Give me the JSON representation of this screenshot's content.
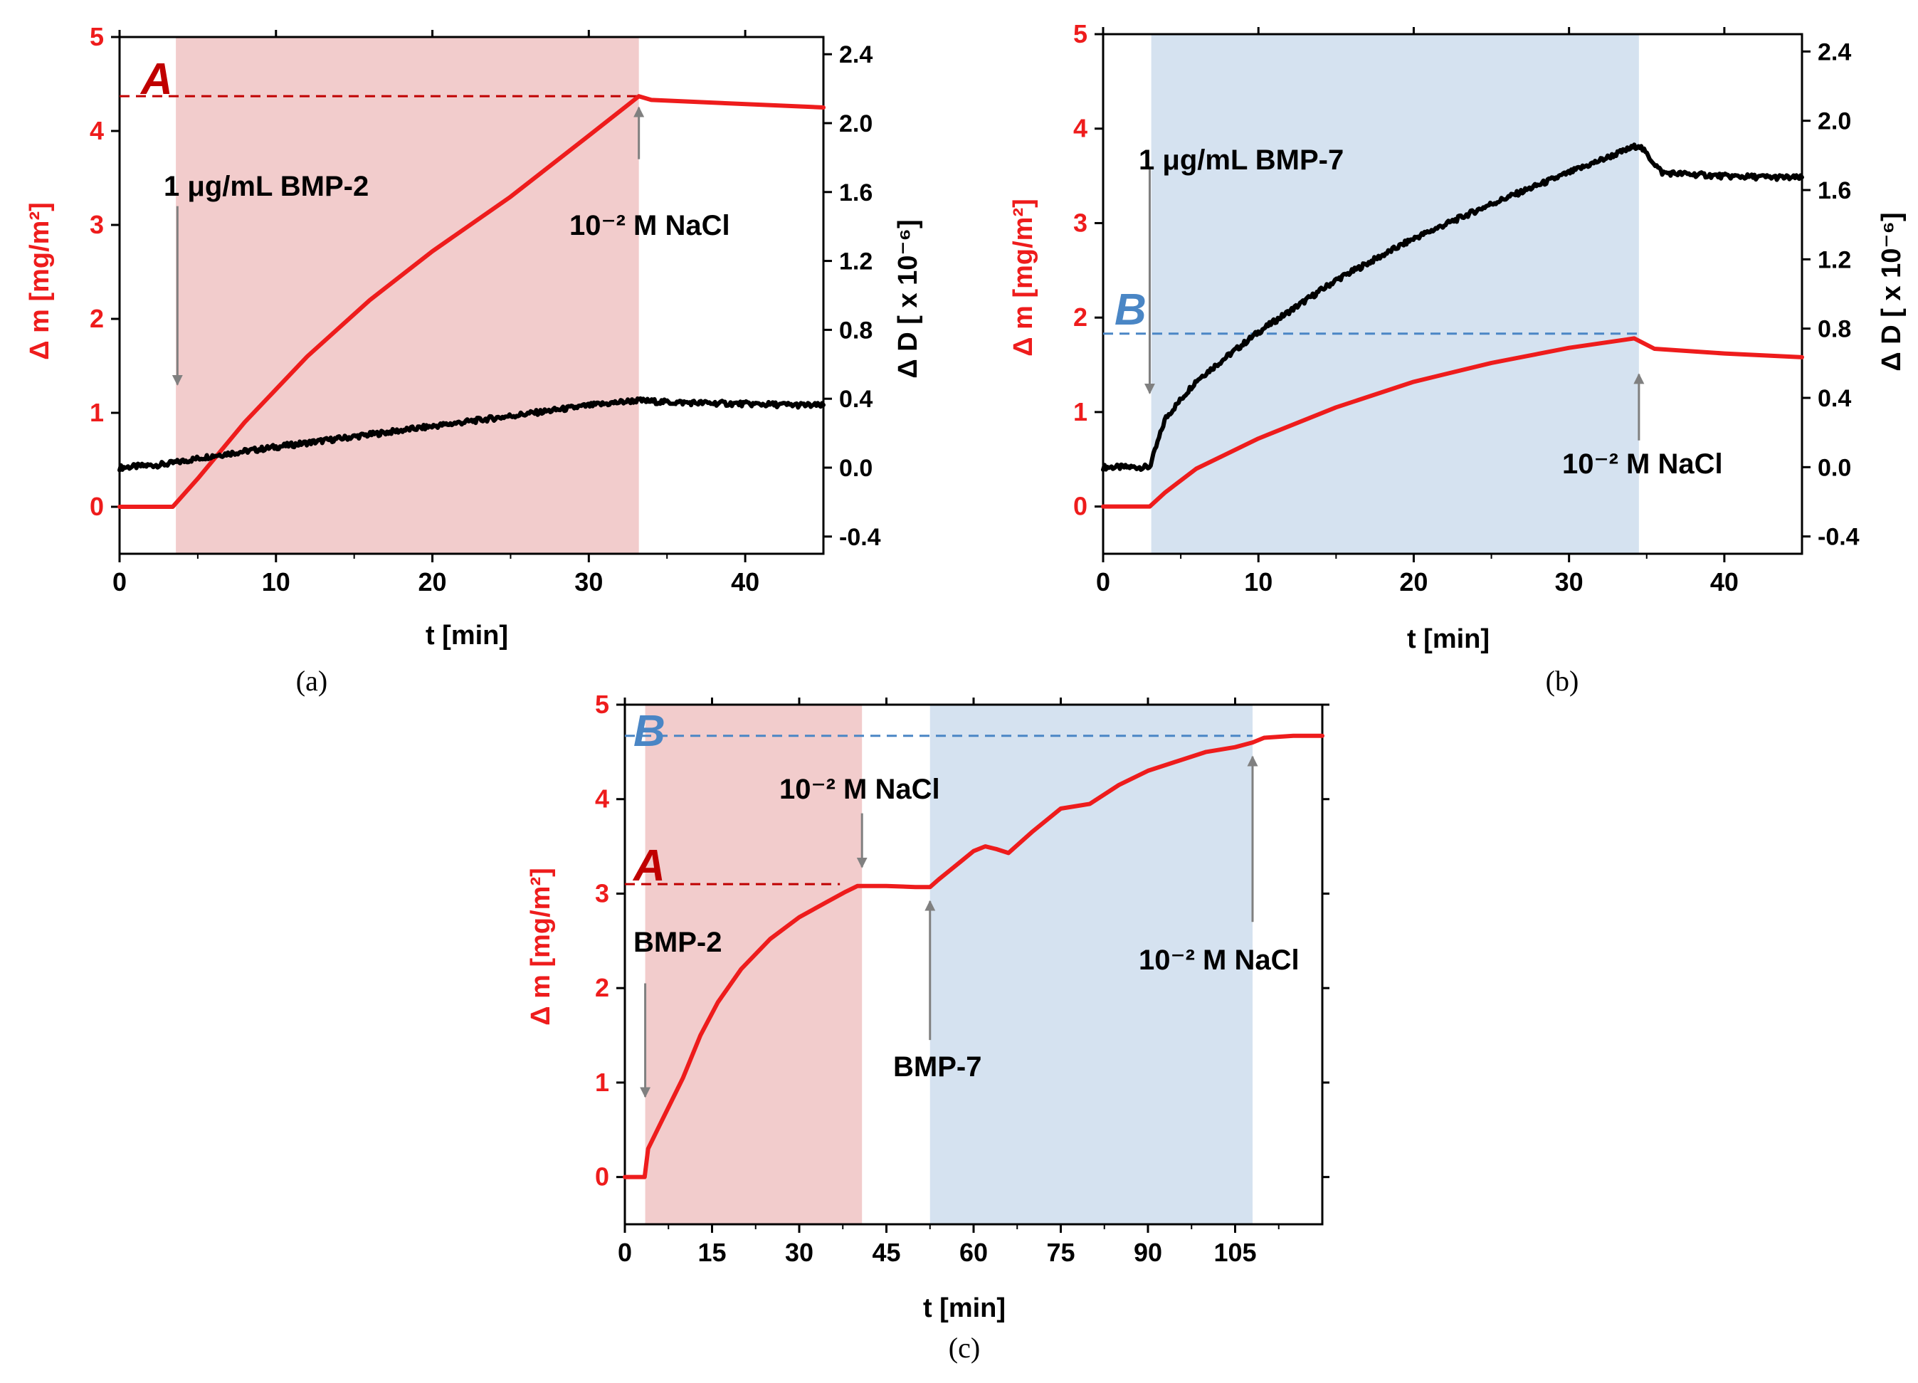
{
  "colors": {
    "mass": "#ee1c1c",
    "dissipation": "#000000",
    "bmp2_shade": "#f2cccc",
    "bmp7_shade": "#d5e2f0",
    "marker_a": "#c00000",
    "marker_b": "#4a86c5",
    "arrow": "#808080"
  },
  "chart_data": [
    {
      "id": "a",
      "panel_label": "(a)",
      "type": "line",
      "xlabel": "t [min]",
      "ylabel_left": "Δ m [mg/m²]",
      "ylabel_right": "Δ D [ x 10⁻⁶]",
      "xlim": [
        0,
        45
      ],
      "ylim_left": [
        -0.5,
        5
      ],
      "ylim_right": [
        -0.5,
        2.5
      ],
      "xticks": [
        0,
        10,
        20,
        30,
        40
      ],
      "yticks_left": [
        0,
        1,
        2,
        3,
        4,
        5
      ],
      "yticks_right": [
        -0.4,
        0.0,
        0.4,
        0.8,
        1.2,
        1.6,
        2.0,
        2.4
      ],
      "shaded_regions": [
        {
          "x0": 3.6,
          "x1": 33.2,
          "protein": "BMP-2"
        }
      ],
      "reference_line": {
        "y": 4.37,
        "label": "A"
      },
      "series": [
        {
          "name": "Δ m",
          "axis": "left",
          "x": [
            0,
            3.4,
            5,
            8,
            12,
            16,
            20,
            25,
            30,
            33.2,
            34,
            45
          ],
          "y": [
            0,
            0,
            0.3,
            0.9,
            1.6,
            2.2,
            2.72,
            3.3,
            3.95,
            4.37,
            4.33,
            4.25
          ]
        },
        {
          "name": "Δ D",
          "axis": "right",
          "x": [
            0,
            3,
            6,
            10,
            15,
            20,
            25,
            30,
            33,
            35,
            40,
            45
          ],
          "y": [
            0.0,
            0.02,
            0.07,
            0.12,
            0.18,
            0.24,
            0.3,
            0.36,
            0.39,
            0.38,
            0.37,
            0.36
          ]
        }
      ],
      "annotations": [
        {
          "text": "1 μg/mL BMP-2",
          "x": 3.7,
          "arrow_from": 3.2,
          "arrow_to": 1.3,
          "arrow_axis": "left"
        },
        {
          "text": "10⁻² M NaCl",
          "x": 33.2,
          "arrow_from": 3.7,
          "arrow_to": 4.25,
          "arrow_axis": "left"
        }
      ]
    },
    {
      "id": "b",
      "panel_label": "(b)",
      "type": "line",
      "xlabel": "t [min]",
      "ylabel_left": "Δ m [mg/m²]",
      "ylabel_right": "Δ D [ x 10⁻⁶]",
      "xlim": [
        0,
        45
      ],
      "ylim_left": [
        -0.5,
        5
      ],
      "ylim_right": [
        -0.5,
        2.5
      ],
      "xticks": [
        0,
        10,
        20,
        30,
        40
      ],
      "yticks_left": [
        0,
        1,
        2,
        3,
        4,
        5
      ],
      "yticks_right": [
        -0.4,
        0.0,
        0.4,
        0.8,
        1.2,
        1.6,
        2.0,
        2.4
      ],
      "shaded_regions": [
        {
          "x0": 3.1,
          "x1": 34.5,
          "protein": "BMP-7"
        }
      ],
      "reference_line": {
        "y": 1.83,
        "label": "B"
      },
      "series": [
        {
          "name": "Δ m",
          "axis": "left",
          "x": [
            0,
            3,
            4,
            6,
            10,
            15,
            20,
            25,
            30,
            34.2,
            35.5,
            40,
            45
          ],
          "y": [
            0,
            0,
            0.15,
            0.4,
            0.72,
            1.05,
            1.32,
            1.52,
            1.68,
            1.78,
            1.67,
            1.62,
            1.58
          ]
        },
        {
          "name": "Δ D",
          "axis": "right",
          "x": [
            0,
            3,
            4,
            6,
            10,
            15,
            20,
            25,
            30,
            34.5,
            36,
            40,
            45
          ],
          "y": [
            0.0,
            0.0,
            0.28,
            0.5,
            0.78,
            1.08,
            1.32,
            1.52,
            1.7,
            1.86,
            1.7,
            1.68,
            1.67
          ]
        }
      ],
      "annotations": [
        {
          "text": "1 μg/mL BMP-7",
          "x": 3.0,
          "arrow_from": 3.6,
          "arrow_to": 1.2,
          "arrow_axis": "left"
        },
        {
          "text": "10⁻² M NaCl",
          "x": 34.5,
          "arrow_from": 0.7,
          "arrow_to": 1.4,
          "arrow_axis": "left"
        }
      ]
    },
    {
      "id": "c",
      "panel_label": "(c)",
      "type": "line",
      "xlabel": "t [min]",
      "ylabel_left": "Δ m [mg/m²]",
      "xlim": [
        0,
        120
      ],
      "ylim_left": [
        -0.5,
        5
      ],
      "xticks": [
        0,
        15,
        30,
        45,
        60,
        75,
        90,
        105
      ],
      "yticks_left": [
        0,
        1,
        2,
        3,
        4,
        5
      ],
      "shaded_regions": [
        {
          "x0": 3.5,
          "x1": 40.8,
          "protein": "BMP-2"
        },
        {
          "x0": 52.5,
          "x1": 108,
          "protein": "BMP-7"
        }
      ],
      "reference_lines": [
        {
          "y": 3.1,
          "label": "A",
          "x1": 37
        },
        {
          "y": 4.67,
          "label": "B",
          "x1": 108
        }
      ],
      "series": [
        {
          "name": "Δ m",
          "axis": "left",
          "x": [
            0,
            3.4,
            4,
            6,
            8,
            10,
            13,
            16,
            20,
            25,
            30,
            35,
            38,
            40,
            45,
            50,
            52.5,
            54,
            56,
            58,
            60,
            62,
            64,
            66,
            70,
            75,
            80,
            85,
            90,
            95,
            100,
            105,
            108,
            110,
            115,
            120
          ],
          "y": [
            0,
            0,
            0.3,
            0.55,
            0.8,
            1.05,
            1.5,
            1.85,
            2.2,
            2.52,
            2.75,
            2.92,
            3.02,
            3.08,
            3.08,
            3.07,
            3.07,
            3.15,
            3.25,
            3.35,
            3.45,
            3.5,
            3.47,
            3.43,
            3.65,
            3.9,
            3.95,
            4.15,
            4.3,
            4.4,
            4.5,
            4.55,
            4.6,
            4.65,
            4.67,
            4.67
          ]
        }
      ],
      "annotations": [
        {
          "text": "BMP-2",
          "x": 3.5,
          "arrow_from": 2.05,
          "arrow_to": 0.85,
          "arrow_axis": "left"
        },
        {
          "text": "10⁻² M NaCl",
          "x": 40.8,
          "arrow_from": 3.85,
          "arrow_to": 3.28,
          "arrow_axis": "left"
        },
        {
          "text": "BMP-7",
          "x": 52.5,
          "arrow_from": 1.45,
          "arrow_to": 2.92,
          "arrow_axis": "left"
        },
        {
          "text": "10⁻² M NaCl",
          "x": 108,
          "arrow_from": 2.7,
          "arrow_to": 4.45,
          "arrow_axis": "left"
        }
      ]
    }
  ]
}
